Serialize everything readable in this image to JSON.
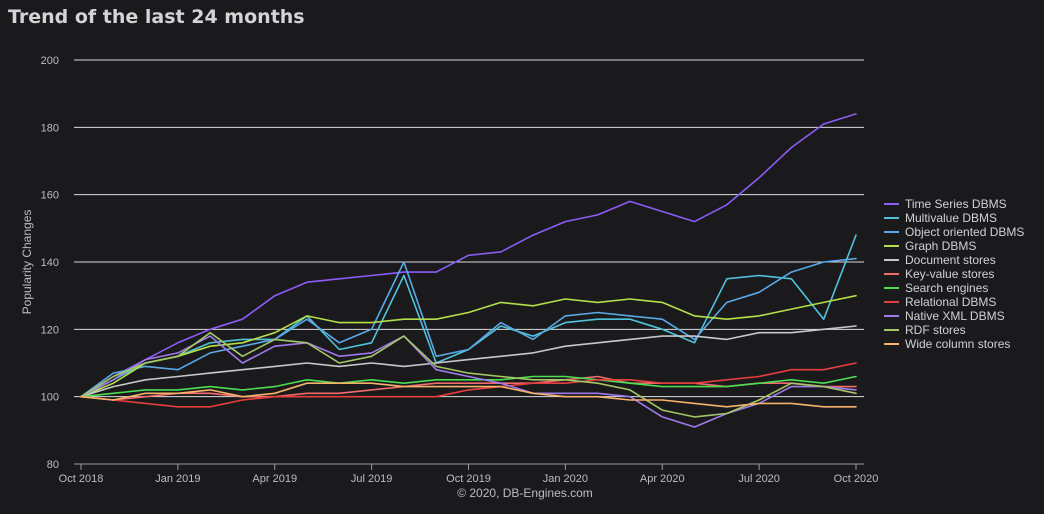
{
  "header": {
    "title": "Trend of the last 24 months"
  },
  "footer": {
    "credit": "© 2020, DB-Engines.com"
  },
  "chart_data": {
    "type": "line",
    "title": "Trend of the last 24 months",
    "xlabel": "",
    "ylabel": "Popularity Changes",
    "ylim": [
      80,
      200
    ],
    "yticks": [
      80,
      100,
      120,
      140,
      160,
      180,
      200
    ],
    "grid": "horizontal",
    "legend_position": "right",
    "x": [
      "2018-10",
      "2018-11",
      "2018-12",
      "2019-01",
      "2019-02",
      "2019-03",
      "2019-04",
      "2019-05",
      "2019-06",
      "2019-07",
      "2019-08",
      "2019-09",
      "2019-10",
      "2019-11",
      "2019-12",
      "2020-01",
      "2020-02",
      "2020-03",
      "2020-04",
      "2020-05",
      "2020-06",
      "2020-07",
      "2020-08",
      "2020-09",
      "2020-10"
    ],
    "xtick_labels": [
      {
        "x": "2018-10",
        "label": "Oct 2018"
      },
      {
        "x": "2019-01",
        "label": "Jan 2019"
      },
      {
        "x": "2019-04",
        "label": "Apr 2019"
      },
      {
        "x": "2019-07",
        "label": "Jul 2019"
      },
      {
        "x": "2019-10",
        "label": "Oct 2019"
      },
      {
        "x": "2020-01",
        "label": "Jan 2020"
      },
      {
        "x": "2020-04",
        "label": "Apr 2020"
      },
      {
        "x": "2020-07",
        "label": "Jul 2020"
      },
      {
        "x": "2020-10",
        "label": "Oct 2020"
      }
    ],
    "series": [
      {
        "name": "Time Series DBMS",
        "color": "#8b5cf6",
        "values": [
          100,
          106,
          111,
          116,
          120,
          123,
          130,
          134,
          135,
          136,
          137,
          137,
          142,
          143,
          148,
          152,
          154,
          158,
          155,
          152,
          157,
          165,
          174,
          181,
          184
        ]
      },
      {
        "name": "Multivalue DBMS",
        "color": "#4fc3dc",
        "values": [
          100,
          105,
          110,
          112,
          116,
          117,
          117,
          124,
          114,
          116,
          136,
          110,
          114,
          121,
          118,
          122,
          123,
          123,
          120,
          116,
          135,
          136,
          135,
          123,
          148
        ]
      },
      {
        "name": "Object oriented DBMS",
        "color": "#5aa9e6",
        "values": [
          100,
          107,
          109,
          108,
          113,
          115,
          117,
          123,
          116,
          120,
          140,
          112,
          114,
          122,
          117,
          124,
          125,
          124,
          123,
          117,
          128,
          131,
          137,
          140,
          141
        ]
      },
      {
        "name": "Graph DBMS",
        "color": "#b5df4a",
        "values": [
          100,
          104,
          110,
          112,
          115,
          116,
          119,
          124,
          122,
          122,
          123,
          123,
          125,
          128,
          127,
          129,
          128,
          129,
          128,
          124,
          123,
          124,
          126,
          128,
          130
        ]
      },
      {
        "name": "Document stores",
        "color": "#c8c8c8",
        "values": [
          100,
          103,
          105,
          106,
          107,
          108,
          109,
          110,
          109,
          110,
          109,
          110,
          111,
          112,
          113,
          115,
          116,
          117,
          118,
          118,
          117,
          119,
          119,
          120,
          121
        ]
      },
      {
        "name": "Key-value stores",
        "color": "#f26b6b",
        "values": [
          100,
          99,
          100,
          101,
          101,
          100,
          100,
          101,
          101,
          102,
          103,
          104,
          104,
          104,
          104,
          105,
          106,
          104,
          104,
          104,
          103,
          104,
          104,
          103,
          103
        ]
      },
      {
        "name": "Search engines",
        "color": "#4ade50",
        "values": [
          100,
          101,
          102,
          102,
          103,
          102,
          103,
          105,
          104,
          105,
          104,
          105,
          105,
          105,
          106,
          106,
          105,
          104,
          103,
          103,
          103,
          104,
          105,
          104,
          106
        ]
      },
      {
        "name": "Relational DBMS",
        "color": "#e53e3e",
        "values": [
          100,
          99,
          98,
          97,
          97,
          99,
          100,
          100,
          100,
          100,
          100,
          100,
          102,
          103,
          104,
          104,
          105,
          105,
          104,
          104,
          105,
          106,
          108,
          108,
          110
        ]
      },
      {
        "name": "Native XML DBMS",
        "color": "#9f7aea",
        "values": [
          100,
          105,
          111,
          113,
          118,
          110,
          115,
          116,
          112,
          113,
          118,
          108,
          106,
          104,
          101,
          101,
          101,
          100,
          94,
          91,
          95,
          98,
          103,
          103,
          102
        ]
      },
      {
        "name": "RDF stores",
        "color": "#a3c766",
        "values": [
          100,
          106,
          110,
          112,
          119,
          112,
          117,
          116,
          110,
          112,
          118,
          109,
          107,
          106,
          105,
          105,
          104,
          102,
          96,
          94,
          95,
          99,
          104,
          103,
          101
        ]
      },
      {
        "name": "Wide column stores",
        "color": "#f6b26b",
        "values": [
          100,
          99,
          101,
          101,
          102,
          100,
          101,
          104,
          104,
          104,
          103,
          103,
          103,
          103,
          101,
          100,
          100,
          99,
          99,
          98,
          97,
          98,
          98,
          97,
          97
        ]
      }
    ]
  }
}
